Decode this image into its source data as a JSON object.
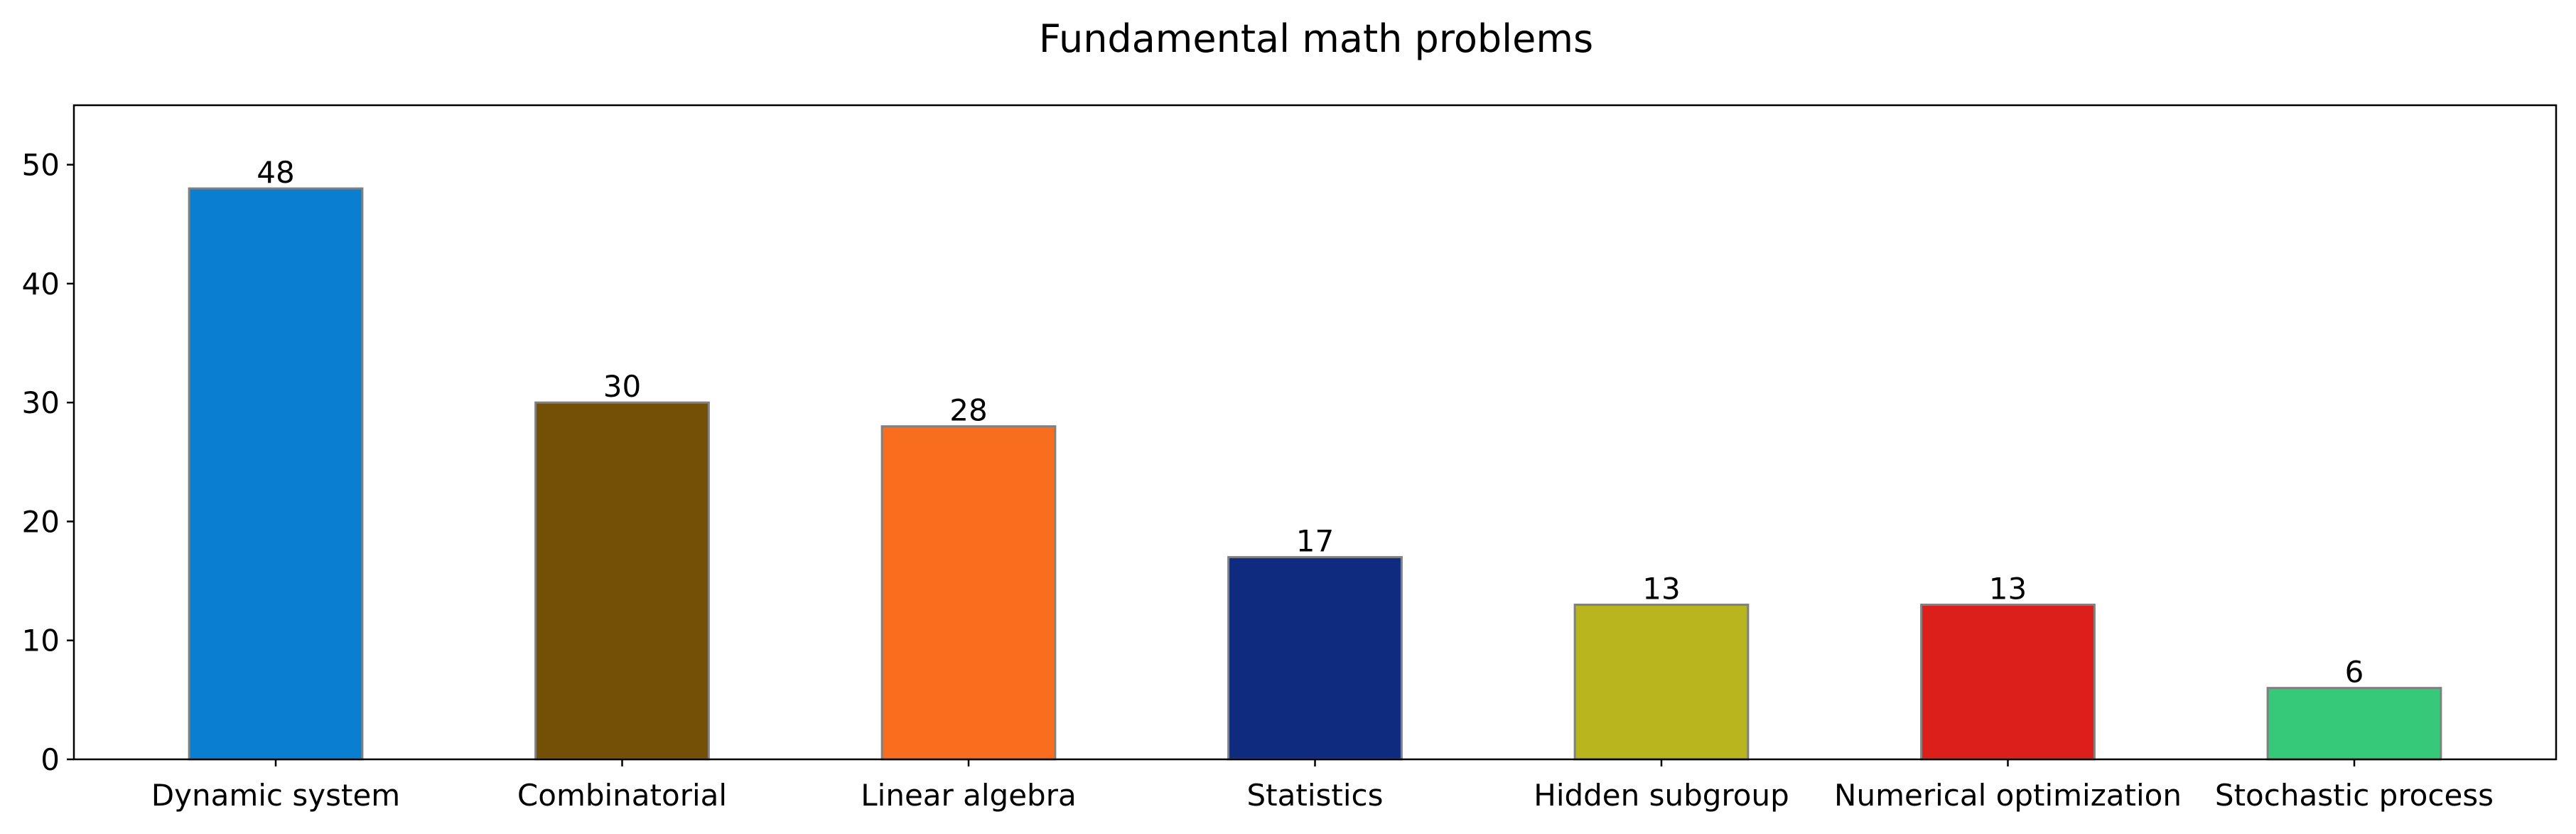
{
  "chart_data": {
    "type": "bar",
    "title": "Fundamental math problems",
    "xlabel": "",
    "ylabel": "",
    "categories": [
      "Dynamic system",
      "Combinatorial",
      "Linear algebra",
      "Statistics",
      "Hidden subgroup",
      "Numerical optimization",
      "Stochastic process"
    ],
    "values": [
      48,
      30,
      28,
      17,
      13,
      13,
      6
    ],
    "data_labels": [
      "48",
      "30",
      "28",
      "17",
      "13",
      "13",
      "6"
    ],
    "colors": [
      "#0a7fd1",
      "#735005",
      "#f96d1f",
      "#0f2b80",
      "#b8b51e",
      "#dc1f1b",
      "#36c97a"
    ],
    "edge_color": "#808080",
    "ylim": [
      0,
      55
    ],
    "yticks": [
      0,
      10,
      20,
      30,
      40,
      50
    ],
    "ytick_labels": [
      "0",
      "10",
      "20",
      "30",
      "40",
      "50"
    ],
    "grid": false,
    "legend": "none"
  }
}
